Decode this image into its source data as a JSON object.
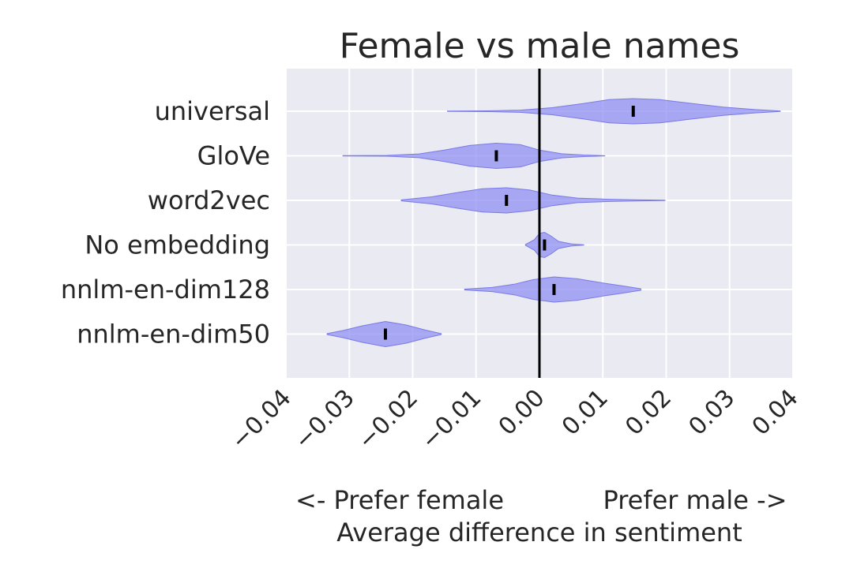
{
  "chart_data": {
    "type": "violin",
    "orientation": "horizontal",
    "title": "Female vs male names",
    "xlabel_left": "<- Prefer female",
    "xlabel_right": "Prefer male ->",
    "xlabel": "Average difference in sentiment",
    "xlim": [
      -0.04,
      0.04
    ],
    "xticks": [
      -0.04,
      -0.03,
      -0.02,
      -0.01,
      0.0,
      0.01,
      0.02,
      0.03,
      0.04
    ],
    "xtick_labels": [
      "−0.04",
      "−0.03",
      "−0.02",
      "−0.01",
      "0.00",
      "0.01",
      "0.02",
      "0.03",
      "0.04"
    ],
    "reference_line_x": 0.0,
    "grid": true,
    "colors": {
      "violin_fill": "#8c8cf2",
      "violin_edge": "#7a7ae6",
      "background": "#eaeaf2",
      "grid": "#ffffff",
      "median": "#000000",
      "reference_line": "#000000"
    },
    "categories": [
      "universal",
      "GloVe",
      "word2vec",
      "No embedding",
      "nnlm-en-dim128",
      "nnlm-en-dim50"
    ],
    "series": [
      {
        "category": "universal",
        "min": -0.0145,
        "max": 0.038,
        "median": 0.0148,
        "profile": [
          [
            -0.0145,
            0.015
          ],
          [
            -0.008,
            0.03
          ],
          [
            -0.003,
            0.09
          ],
          [
            0.002,
            0.28
          ],
          [
            0.007,
            0.62
          ],
          [
            0.011,
            0.92
          ],
          [
            0.0148,
            1.0
          ],
          [
            0.019,
            0.92
          ],
          [
            0.024,
            0.62
          ],
          [
            0.029,
            0.33
          ],
          [
            0.034,
            0.13
          ],
          [
            0.038,
            0.02
          ]
        ]
      },
      {
        "category": "GloVe",
        "min": -0.031,
        "max": 0.0103,
        "median": -0.0068,
        "profile": [
          [
            -0.031,
            0.015
          ],
          [
            -0.024,
            0.03
          ],
          [
            -0.019,
            0.15
          ],
          [
            -0.015,
            0.45
          ],
          [
            -0.011,
            0.82
          ],
          [
            -0.0068,
            1.0
          ],
          [
            -0.003,
            0.88
          ],
          [
            0.0,
            0.45
          ],
          [
            0.0035,
            0.16
          ],
          [
            0.007,
            0.06
          ],
          [
            0.0103,
            0.015
          ]
        ]
      },
      {
        "category": "word2vec",
        "min": -0.0218,
        "max": 0.0198,
        "median": -0.0052,
        "profile": [
          [
            -0.0218,
            0.04
          ],
          [
            -0.017,
            0.28
          ],
          [
            -0.013,
            0.62
          ],
          [
            -0.009,
            0.92
          ],
          [
            -0.0052,
            1.0
          ],
          [
            -0.0015,
            0.82
          ],
          [
            0.002,
            0.42
          ],
          [
            0.006,
            0.18
          ],
          [
            0.011,
            0.09
          ],
          [
            0.016,
            0.04
          ],
          [
            0.0198,
            0.01
          ]
        ]
      },
      {
        "category": "No embedding",
        "min": -0.0022,
        "max": 0.007,
        "median": 0.0008,
        "profile": [
          [
            -0.0022,
            0.03
          ],
          [
            -0.0008,
            0.42
          ],
          [
            0.0,
            0.92
          ],
          [
            0.0008,
            1.0
          ],
          [
            0.0018,
            0.72
          ],
          [
            0.003,
            0.28
          ],
          [
            0.005,
            0.09
          ],
          [
            0.007,
            0.015
          ]
        ]
      },
      {
        "category": "nnlm-en-dim128",
        "min": -0.0118,
        "max": 0.016,
        "median": 0.0023,
        "profile": [
          [
            -0.0118,
            0.03
          ],
          [
            -0.0075,
            0.16
          ],
          [
            -0.004,
            0.42
          ],
          [
            -0.001,
            0.78
          ],
          [
            0.0023,
            1.0
          ],
          [
            0.006,
            0.85
          ],
          [
            0.01,
            0.52
          ],
          [
            0.013,
            0.3
          ],
          [
            0.016,
            0.06
          ]
        ]
      },
      {
        "category": "nnlm-en-dim50",
        "min": -0.0335,
        "max": -0.0155,
        "median": -0.0243,
        "profile": [
          [
            -0.0335,
            0.04
          ],
          [
            -0.031,
            0.28
          ],
          [
            -0.028,
            0.65
          ],
          [
            -0.0243,
            1.0
          ],
          [
            -0.021,
            0.72
          ],
          [
            -0.018,
            0.32
          ],
          [
            -0.0155,
            0.04
          ]
        ]
      }
    ]
  }
}
